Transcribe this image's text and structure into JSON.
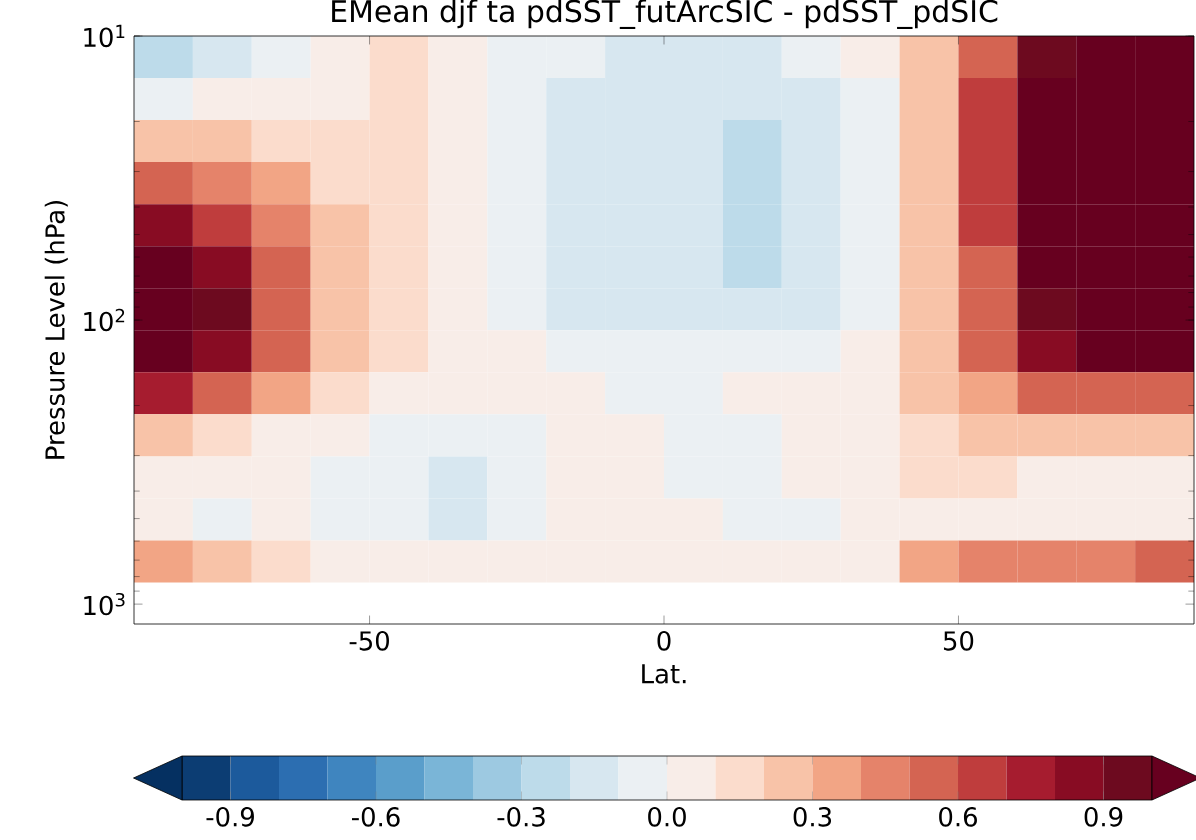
{
  "chart_data": {
    "type": "heatmap",
    "title": "EMean djf ta pdSST_futArcSIC - pdSST_pdSIC",
    "xlabel": "Lat.",
    "ylabel": "Pressure Level (hPa)",
    "x": [
      -85,
      -75,
      -65,
      -55,
      -45,
      -35,
      -25,
      -15,
      -5,
      5,
      15,
      25,
      35,
      45,
      55,
      65,
      75,
      85
    ],
    "y": [
      11.86,
      16.67,
      23.44,
      32.96,
      46.35,
      65.16,
      91.62,
      128.8,
      181.1,
      254.7,
      358.1,
      503.5,
      708.0
    ],
    "cells": [
      [
        -0.3,
        -0.2,
        -0.1,
        0.05,
        0.1,
        0.0,
        -0.05,
        -0.1,
        -0.15,
        -0.15,
        -0.15,
        -0.1,
        0.0,
        0.2,
        0.5,
        0.9,
        1.0,
        1.0
      ],
      [
        -0.05,
        0.0,
        0.05,
        0.05,
        0.1,
        0.05,
        -0.1,
        -0.15,
        -0.15,
        -0.15,
        -0.2,
        -0.2,
        -0.05,
        0.2,
        0.6,
        1.0,
        1.0,
        1.0
      ],
      [
        0.2,
        0.2,
        0.1,
        0.1,
        0.1,
        0.05,
        -0.1,
        -0.15,
        -0.15,
        -0.2,
        -0.25,
        -0.2,
        -0.1,
        0.2,
        0.6,
        1.0,
        1.0,
        1.0
      ],
      [
        0.5,
        0.4,
        0.3,
        0.1,
        0.1,
        0.05,
        -0.1,
        -0.15,
        -0.2,
        -0.2,
        -0.3,
        -0.2,
        -0.1,
        0.2,
        0.6,
        1.0,
        1.0,
        1.0
      ],
      [
        0.8,
        0.6,
        0.4,
        0.2,
        0.1,
        0.05,
        -0.1,
        -0.2,
        -0.2,
        -0.2,
        -0.3,
        -0.2,
        -0.1,
        0.2,
        0.6,
        1.0,
        1.0,
        1.0
      ],
      [
        1.0,
        0.8,
        0.5,
        0.2,
        0.1,
        0.05,
        -0.1,
        -0.2,
        -0.2,
        -0.2,
        -0.3,
        -0.2,
        -0.1,
        0.2,
        0.5,
        1.0,
        1.0,
        1.0
      ],
      [
        1.0,
        0.9,
        0.5,
        0.2,
        0.1,
        0.05,
        -0.1,
        -0.15,
        -0.2,
        -0.2,
        -0.2,
        -0.15,
        -0.05,
        0.2,
        0.5,
        0.9,
        1.0,
        1.0
      ],
      [
        1.0,
        0.8,
        0.5,
        0.2,
        0.1,
        0.05,
        0.0,
        -0.1,
        -0.1,
        -0.1,
        -0.1,
        -0.05,
        0.05,
        0.2,
        0.5,
        0.8,
        1.0,
        1.0
      ],
      [
        0.7,
        0.5,
        0.3,
        0.1,
        0.05,
        0.05,
        0.05,
        0.0,
        -0.05,
        -0.05,
        0.0,
        0.0,
        0.05,
        0.2,
        0.3,
        0.5,
        0.5,
        0.5
      ],
      [
        0.2,
        0.1,
        0.05,
        0.0,
        -0.05,
        -0.05,
        -0.05,
        0.0,
        0.0,
        -0.05,
        -0.05,
        0.0,
        0.05,
        0.1,
        0.2,
        0.2,
        0.2,
        0.2
      ],
      [
        0.05,
        0.0,
        0.0,
        -0.05,
        -0.1,
        -0.15,
        -0.1,
        0.0,
        0.0,
        -0.05,
        -0.05,
        0.0,
        0.05,
        0.1,
        0.1,
        0.05,
        0.05,
        0.05
      ],
      [
        0.0,
        -0.05,
        0.0,
        -0.05,
        -0.1,
        -0.2,
        -0.05,
        0.05,
        0.05,
        0.0,
        -0.05,
        -0.1,
        0.0,
        0.05,
        0.05,
        0.05,
        0.05,
        0.05
      ],
      [
        0.3,
        0.2,
        0.1,
        0.0,
        0.0,
        0.05,
        0.05,
        0.05,
        0.05,
        0.0,
        0.05,
        0.05,
        0.05,
        0.3,
        0.4,
        0.4,
        0.4,
        0.5
      ]
    ],
    "xlim": [
      -90,
      90
    ],
    "xticks": [
      -50,
      0,
      50
    ],
    "ylim": [
      1175,
      10
    ],
    "yticks": [
      {
        "value": 10,
        "label": "10$^{1}$"
      },
      {
        "value": 100,
        "label": "10$^{2}$"
      },
      {
        "value": 1000,
        "label": "10$^{3}$"
      }
    ],
    "log": "y",
    "grid": false,
    "clim": [
      -1,
      1
    ],
    "cticks": [
      -0.9,
      -0.6,
      -0.3,
      {
        "value": 0,
        "label": "0.0"
      },
      0.3,
      0.6,
      0.9
    ]
  }
}
